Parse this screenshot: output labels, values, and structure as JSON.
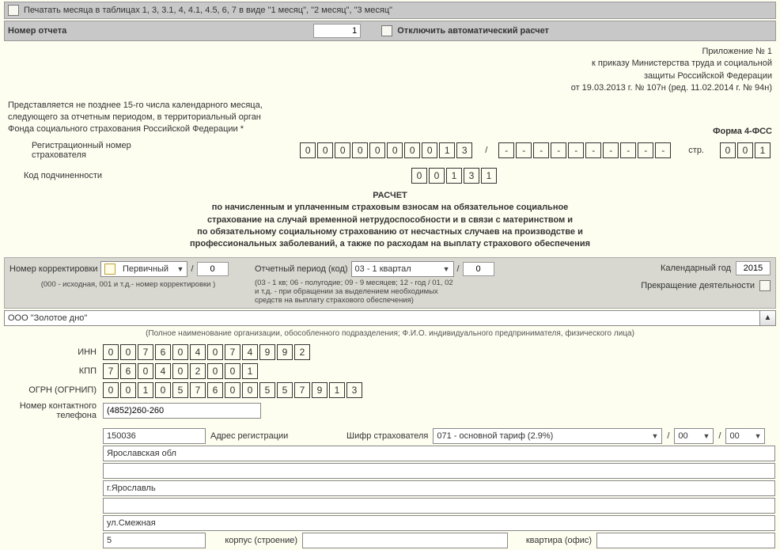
{
  "topbar1": {
    "print_months_label": "Печатать месяца в таблицах 1, 3, 3.1, 4, 4.1, 4.5, 6, 7 в виде \"1 месяц\", \"2 месяц\", \"3 месяц\""
  },
  "topbar2": {
    "report_number_label": "Номер отчета",
    "report_number_value": "1",
    "disable_auto_calc": "Отключить автоматический расчет"
  },
  "header_right": {
    "line1": "Приложение № 1",
    "line2": "к приказу Министерства труда и социальной",
    "line3": "защиты Российской Федерации",
    "line4": "от 19.03.2013 г. № 107н (ред. 11.02.2014 г. № 94н)"
  },
  "note_left": {
    "line1": "Представляется не позднее 15-го числа календарного месяца,",
    "line2": "следующего за отчетным периодом, в территориальный орган",
    "line3": "Фонда социального страхования Российской Федерации *"
  },
  "form_code_label": "Форма 4-ФСС",
  "reg_number_label": "Регистрационный номер страхователя",
  "reg_number": [
    "0",
    "0",
    "0",
    "0",
    "0",
    "0",
    "0",
    "0",
    "1",
    "3"
  ],
  "reg_sep": "/",
  "reg_dashes": [
    "-",
    "-",
    "-",
    "-",
    "-",
    "-",
    "-",
    "-",
    "-",
    "-"
  ],
  "page_label": "стр.",
  "page_cells": [
    "0",
    "0",
    "1"
  ],
  "sub_code_label": "Код подчиненности",
  "sub_code": [
    "0",
    "0",
    "1",
    "3",
    "1"
  ],
  "title": {
    "l1": "РАСЧЕТ",
    "l2": "по начисленным и уплаченным страховым взносам на обязательное социальное",
    "l3": "страхование на случай временной нетрудоспособности и в связи с материнством и",
    "l4": "по обязательному социальному страхованию от несчастных случаев на производстве и",
    "l5": "профессиональных заболеваний, а также по расходам на выплату страхового обеспечения"
  },
  "params": {
    "corr_label": "Номер корректировки",
    "corr_select": "Первичный",
    "corr_value": "0",
    "corr_hint": "(000 - исходная, 001 и т.д.- номер корректировки )",
    "period_label": "Отчетный период (код)",
    "period_select": "03 - 1 квартал",
    "period_value": "0",
    "period_hint1": "(03 - 1 кв; 06 - полугодие; 09 - 9 месяцев; 12 - год / 01, 02",
    "period_hint2": "и т.д. - при обращении за выделением необходимых",
    "period_hint3": "средств на выплату страхового обеспечения)",
    "year_label": "Календарный год",
    "year_value": "2015",
    "cease_label": "Прекращение деятельности"
  },
  "org": {
    "name": "ООО \"Золотое дно\"",
    "hint": "(Полное наименование организации, обособленного подразделения; Ф.И.О. индивидуального предпринимателя, физического лица)"
  },
  "ids": {
    "inn_label": "ИНН",
    "inn": [
      "0",
      "0",
      "7",
      "6",
      "0",
      "4",
      "0",
      "7",
      "4",
      "9",
      "9",
      "2"
    ],
    "kpp_label": "КПП",
    "kpp": [
      "7",
      "6",
      "0",
      "4",
      "0",
      "2",
      "0",
      "0",
      "1"
    ],
    "ogrn_label": "ОГРН (ОГРНИП)",
    "ogrn": [
      "0",
      "0",
      "1",
      "0",
      "5",
      "7",
      "6",
      "0",
      "0",
      "5",
      "5",
      "7",
      "9",
      "1",
      "3"
    ],
    "phone_label": "Номер контактного телефона",
    "phone_value": "(4852)260-260"
  },
  "addr": {
    "postcode": "150036",
    "addr_label": "Адрес регистрации",
    "tariff_label": "Шифр страхователя",
    "tariff_select": "071 - основной тариф (2.9%)",
    "sel2": "00",
    "sel3": "00",
    "region": "Ярославская обл",
    "city": "г.Ярославль",
    "street": "ул.Смежная",
    "house": "5",
    "building_label": "корпус (строение)",
    "flat_label": "квартира (офис)"
  }
}
